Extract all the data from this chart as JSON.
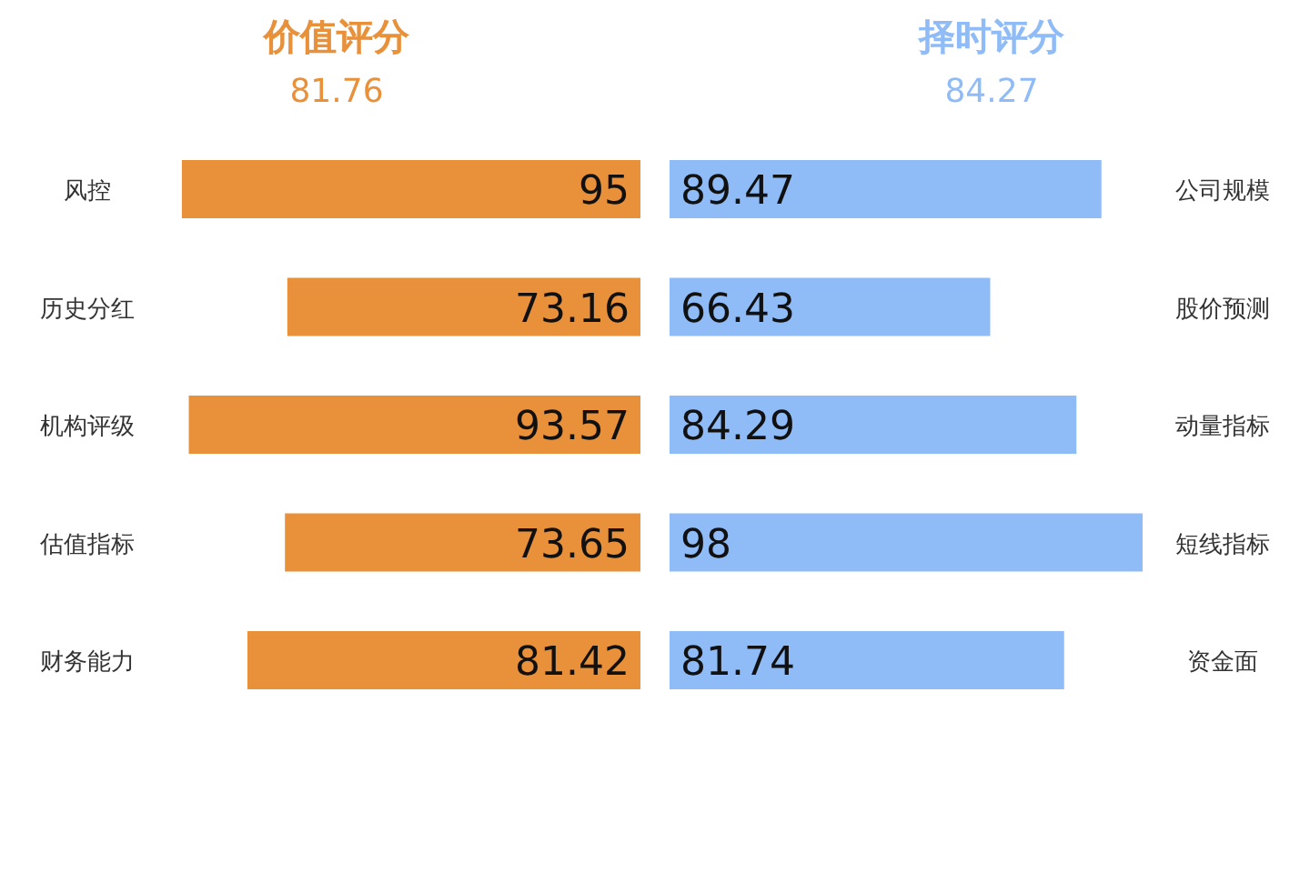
{
  "chart_data": [
    {
      "type": "bar",
      "orientation": "horizontal",
      "title": "价值评分",
      "subtitle": "81.76",
      "categories": [
        "风控",
        "历史分红",
        "机构评级",
        "估值指标",
        "财务能力"
      ],
      "data_labels": true,
      "series": [
        {
          "color": "#e8913a",
          "values": [
            95,
            73.16,
            93.57,
            73.65,
            81.42
          ]
        }
      ]
    },
    {
      "type": "bar",
      "orientation": "horizontal",
      "title": "择时评分",
      "subtitle": "84.27",
      "categories": [
        "公司规模",
        "股价预测",
        "动量指标",
        "短线指标",
        "资金面"
      ],
      "data_labels": true,
      "series": [
        {
          "color": "#8fbcf7",
          "values": [
            89.47,
            66.43,
            84.29,
            98,
            81.74
          ]
        }
      ]
    }
  ]
}
